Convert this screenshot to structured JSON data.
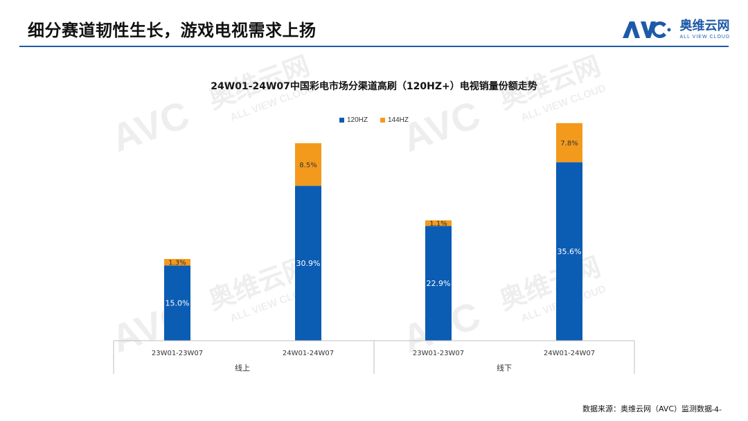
{
  "header": {
    "title": "细分赛道韧性生长，游戏电视需求上扬"
  },
  "brand": {
    "zh": "奥维云网",
    "en": "ALL VIEW CLOUD",
    "mark": "AVC",
    "color": "#1e5aa8"
  },
  "chart_data": {
    "type": "bar",
    "title": "24W01-24W07中国彩电市场分渠道高刷（120HZ+）电视销量份额走势",
    "legend_placement": "top-center",
    "grid": false,
    "series": [
      {
        "name": "120HZ",
        "color": "#0b5cb3",
        "values": [
          15.0,
          30.9,
          22.9,
          35.6
        ],
        "labels": [
          "15.0%",
          "30.9%",
          "22.9%",
          "35.6%"
        ]
      },
      {
        "name": "144HZ",
        "color": "#f39a1d",
        "values": [
          1.3,
          8.5,
          1.1,
          7.8
        ],
        "labels": [
          "1.3%",
          "8.5%",
          "1.1%",
          "7.8%"
        ]
      }
    ],
    "categories": [
      "23W01-23W07",
      "24W01-24W07",
      "23W01-23W07",
      "24W01-24W07"
    ],
    "groups": [
      "线上",
      "线下"
    ],
    "ylim": [
      0,
      50
    ]
  },
  "footer": {
    "source_text": "数据来源：奥维云网（AVC）监测数据",
    "page_num": "-4-"
  }
}
